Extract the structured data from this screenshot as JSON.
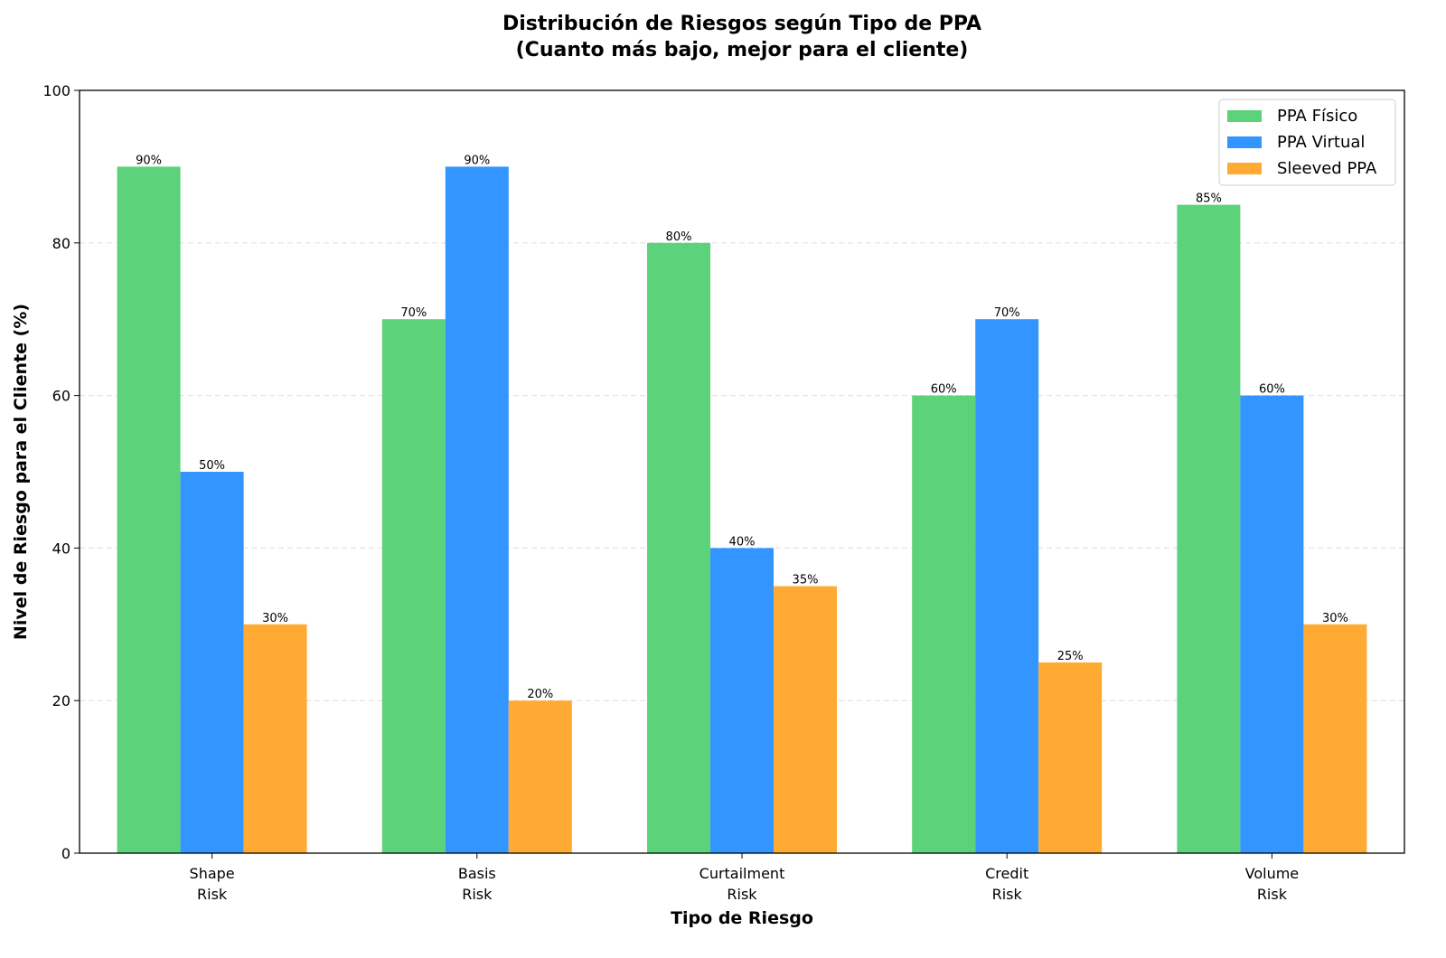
{
  "chart_data": {
    "type": "bar",
    "title": "Distribución de Riesgos según Tipo de PPA",
    "subtitle": "(Cuanto más bajo, mejor para el cliente)",
    "xlabel": "Tipo de Riesgo",
    "ylabel": "Nivel de Riesgo para el Cliente (%)",
    "ylim": [
      0,
      100
    ],
    "yticks": [
      0,
      20,
      40,
      60,
      80,
      100
    ],
    "grid": "y-dashed",
    "legend_position": "top-right",
    "categories": [
      [
        "Shape",
        "Risk"
      ],
      [
        "Basis",
        "Risk"
      ],
      [
        "Curtailment",
        "Risk"
      ],
      [
        "Credit",
        "Risk"
      ],
      [
        "Volume",
        "Risk"
      ]
    ],
    "series": [
      {
        "name": "PPA Físico",
        "color": "#5cd27a",
        "values": [
          90,
          70,
          80,
          60,
          85
        ]
      },
      {
        "name": "PPA Virtual",
        "color": "#3395ff",
        "values": [
          50,
          90,
          40,
          70,
          60
        ]
      },
      {
        "name": "Sleeved PPA",
        "color": "#ffaa33",
        "values": [
          30,
          20,
          35,
          25,
          30
        ]
      }
    ],
    "label_suffix": "%"
  }
}
